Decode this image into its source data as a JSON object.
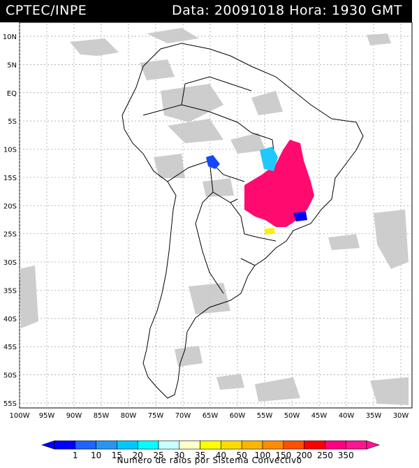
{
  "header": {
    "source": "CPTEC/INPE",
    "datetime": "Data: 20091018 Hora: 1930 GMT"
  },
  "axes": {
    "lat_labels": [
      "10N",
      "5N",
      "EQ",
      "5S",
      "10S",
      "15S",
      "20S",
      "25S",
      "30S",
      "35S",
      "40S",
      "45S",
      "50S",
      "55S"
    ],
    "lon_labels": [
      "100W",
      "95W",
      "90W",
      "85W",
      "80W",
      "75W",
      "70W",
      "65W",
      "60W",
      "55W",
      "50W",
      "45W",
      "40W",
      "35W",
      "30W"
    ]
  },
  "legend": {
    "title": "Numero de raios por Sistema Convectivo",
    "labels": [
      "1",
      "10",
      "15",
      "20",
      "25",
      "30",
      "35",
      "40",
      "50",
      "100",
      "150",
      "200",
      "250",
      "350"
    ],
    "colors": [
      "#0000ff",
      "#1e64ff",
      "#2896f0",
      "#00c8ff",
      "#00ffff",
      "#c8ffff",
      "#ffffc8",
      "#ffff00",
      "#ffdc00",
      "#ffb400",
      "#ff8c00",
      "#ff5000",
      "#ff0000",
      "#ff0080",
      "#ff1493"
    ]
  },
  "colors": {
    "cloud": "#c8c8c8",
    "coast": "#000000",
    "grid": "#888888"
  }
}
